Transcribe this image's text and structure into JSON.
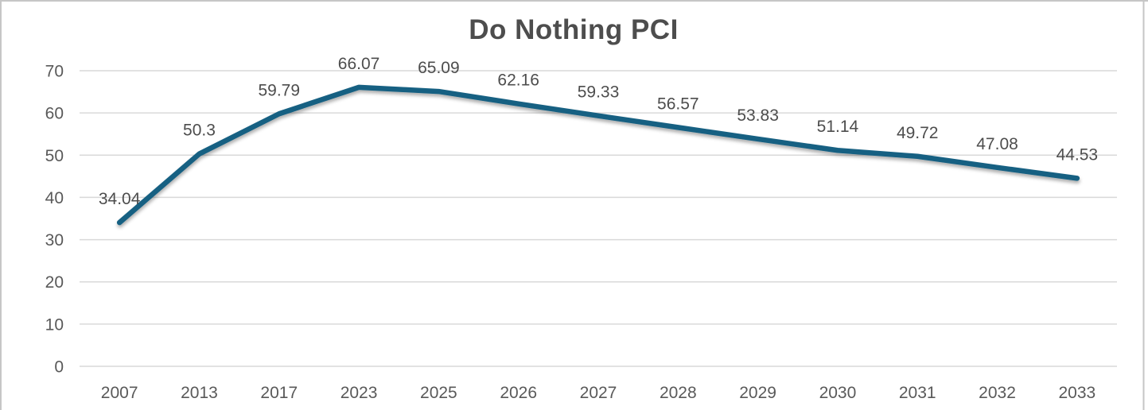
{
  "chart_data": {
    "type": "line",
    "title": "Do Nothing PCI",
    "categories": [
      "2007",
      "2013",
      "2017",
      "2023",
      "2025",
      "2026",
      "2027",
      "2028",
      "2029",
      "2030",
      "2031",
      "2032",
      "2033"
    ],
    "values": [
      34.04,
      50.3,
      59.79,
      66.07,
      65.09,
      62.16,
      59.33,
      56.57,
      53.83,
      51.14,
      49.72,
      47.08,
      44.53
    ],
    "data_labels": [
      "34.04",
      "50.3",
      "59.79",
      "66.07",
      "65.09",
      "62.16",
      "59.33",
      "56.57",
      "53.83",
      "51.14",
      "49.72",
      "47.08",
      "44.53"
    ],
    "xlabel": "",
    "ylabel": "",
    "ylim": [
      0,
      70
    ],
    "ytick_step": 10,
    "ytick_labels": [
      "0",
      "10",
      "20",
      "30",
      "40",
      "50",
      "60",
      "70"
    ],
    "grid": true,
    "legend_position": "none",
    "colors": {
      "line": "#156082",
      "gridline": "#d9d9d9",
      "axis_text": "#595959",
      "data_label_text": "#4d4d4d",
      "title_text": "#4d4d4d",
      "frame_border": "#c6c6c6",
      "background": "#ffffff"
    }
  }
}
